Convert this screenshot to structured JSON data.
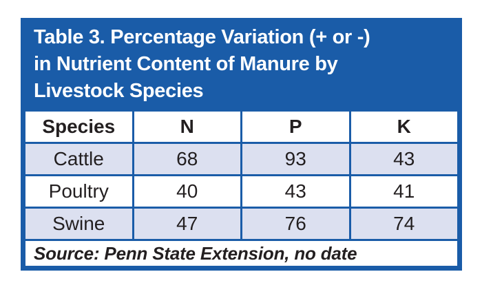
{
  "title": {
    "lines": [
      "Table 3. Percentage Variation (+ or -)",
      "in Nutrient Content of Manure by",
      "Livestock Species"
    ]
  },
  "chart_data": {
    "type": "table",
    "title": "Table 3. Percentage Variation (+ or -) in Nutrient Content of Manure by Livestock Species",
    "columns": [
      "Species",
      "N",
      "P",
      "K"
    ],
    "rows": [
      [
        "Cattle",
        68,
        93,
        43
      ],
      [
        "Poultry",
        40,
        43,
        41
      ],
      [
        "Swine",
        47,
        76,
        74
      ]
    ],
    "source": "Source: Penn State Extension, no date"
  },
  "table": {
    "headers": {
      "species": "Species",
      "n": "N",
      "p": "P",
      "k": "K"
    },
    "rows": [
      {
        "species": "Cattle",
        "n": "68",
        "p": "93",
        "k": "43"
      },
      {
        "species": "Poultry",
        "n": "40",
        "p": "43",
        "k": "41"
      },
      {
        "species": "Swine",
        "n": "47",
        "p": "76",
        "k": "74"
      }
    ],
    "source": "Source: Penn State Extension, no date"
  },
  "colors": {
    "accent_blue": "#1a5ca8",
    "row_shade": "#dce0f0",
    "text_dark": "#231f20",
    "title_text": "#ffffff"
  }
}
